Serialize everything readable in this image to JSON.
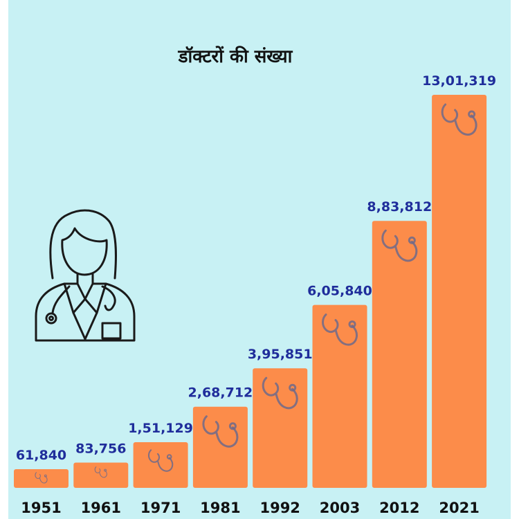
{
  "title": "डॉक्टरों की संख्या",
  "colors": {
    "background": "#c8f1f4",
    "bar": "#fc8c4a",
    "value_label": "#1f2d9b",
    "year_label": "#111111",
    "stethoscope": "#6e6a8a"
  },
  "icons": {
    "bar_icon": "stethoscope-icon",
    "illustration": "doctor-icon"
  },
  "chart_data": {
    "type": "bar",
    "title": "डॉक्टरों की संख्या",
    "categories": [
      "1951",
      "1961",
      "1971",
      "1981",
      "1992",
      "2003",
      "2012",
      "2021"
    ],
    "values": [
      61840,
      83756,
      151129,
      268712,
      395851,
      605840,
      883812,
      1301319
    ],
    "value_labels": [
      "61,840",
      "83,756",
      "1,51,129",
      "2,68,712",
      "3,95,851",
      "6,05,840",
      "8,83,812",
      "13,01,319"
    ],
    "xlabel": "",
    "ylabel": "",
    "grid": false,
    "legend": "none"
  }
}
